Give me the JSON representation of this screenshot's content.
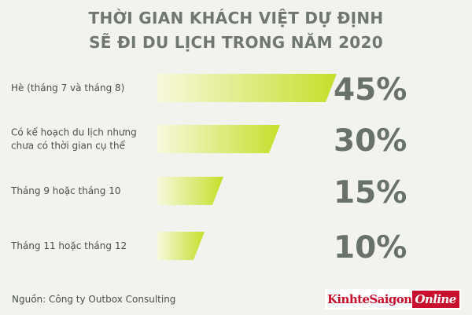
{
  "title_line1": "THỜI GIAN KHÁCH VIỆT DỰ ĐỊNH",
  "title_line2": "SẼ ĐI DU LỊCH TRONG NĂM 2020",
  "source": "Nguồn: Công ty Outbox Consulting",
  "logo": {
    "part1": "KinhteSaigon",
    "part2": "Online"
  },
  "colors": {
    "bar_start": "#f7f9dc",
    "bar_end": "#c5df2b",
    "value_text": "#697268",
    "title": "#6f7770",
    "logo_red": "#c8102e"
  },
  "chart_data": {
    "type": "bar",
    "orientation": "horizontal",
    "title": "THỜI GIAN KHÁCH VIỆT DỰ ĐỊNH SẼ ĐI DU LỊCH TRONG NĂM 2020",
    "categories": [
      [
        "Hè (tháng 7 và tháng 8)"
      ],
      [
        "Có kế hoạch du lịch nhưng",
        "chưa có thời gian cụ thể"
      ],
      [
        "Tháng 9 hoặc tháng 10"
      ],
      [
        "Tháng 11 hoặc tháng 12"
      ]
    ],
    "values": [
      45,
      30,
      15,
      10
    ],
    "value_labels": [
      "45%",
      "30%",
      "15%",
      "10%"
    ],
    "grid": false
  }
}
